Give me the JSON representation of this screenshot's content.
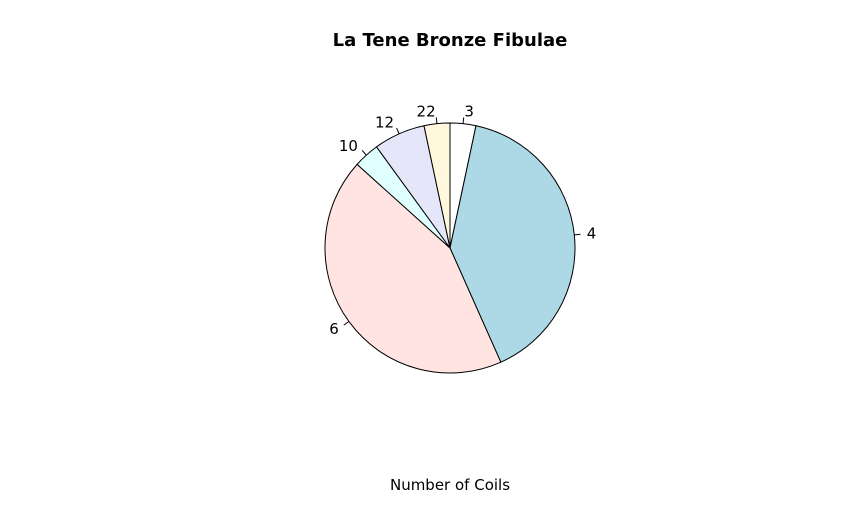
{
  "chart_data": {
    "type": "pie",
    "title": "La Tene Bronze Fibulae",
    "xlabel": "Number of Coils",
    "categories": [
      "3",
      "4",
      "6",
      "10",
      "12",
      "22"
    ],
    "values": [
      1,
      12,
      13,
      1,
      2,
      1
    ],
    "colors": [
      "#ffffff",
      "#add8e6",
      "#ffe4e1",
      "#e0ffff",
      "#e6e6fa",
      "#fff8dc"
    ],
    "start_angle_deg": 90,
    "direction": "clockwise",
    "legend": "none"
  }
}
